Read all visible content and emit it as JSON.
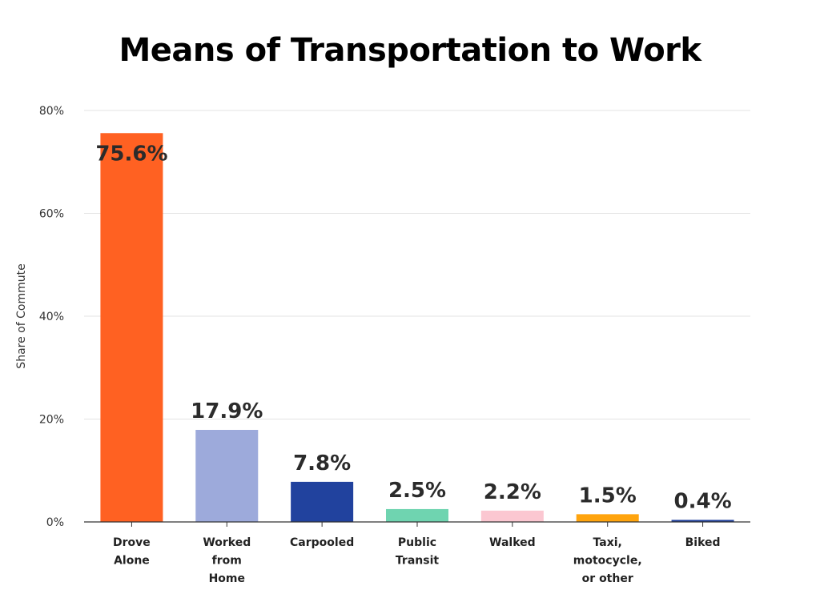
{
  "chart_data": {
    "type": "bar",
    "title": "Means of Transportation to Work",
    "xlabel": "",
    "ylabel": "Share of Commute",
    "ylim": [
      0,
      80
    ],
    "yticks": [
      {
        "value": 0,
        "label": "0%"
      },
      {
        "value": 20,
        "label": "20%"
      },
      {
        "value": 40,
        "label": "40%"
      },
      {
        "value": 60,
        "label": "60%"
      },
      {
        "value": 80,
        "label": "80%"
      }
    ],
    "grid": true,
    "legend": "none",
    "categories": [
      [
        "Drove",
        "Alone"
      ],
      [
        "Worked",
        "from",
        "Home"
      ],
      [
        "Carpooled"
      ],
      [
        "Public",
        "Transit"
      ],
      [
        "Walked"
      ],
      [
        "Taxi,",
        "motocycle,",
        "or other"
      ],
      [
        "Biked"
      ]
    ],
    "values": [
      75.6,
      17.9,
      7.8,
      2.5,
      2.2,
      1.5,
      0.4
    ],
    "value_labels": [
      "75.6%",
      "17.9%",
      "7.8%",
      "2.5%",
      "2.2%",
      "1.5%",
      "0.4%"
    ],
    "colors": [
      "#ff6122",
      "#9daadb",
      "#21429e",
      "#6fd4b0",
      "#fbc7d1",
      "#ffa40e",
      "#21429e"
    ]
  }
}
